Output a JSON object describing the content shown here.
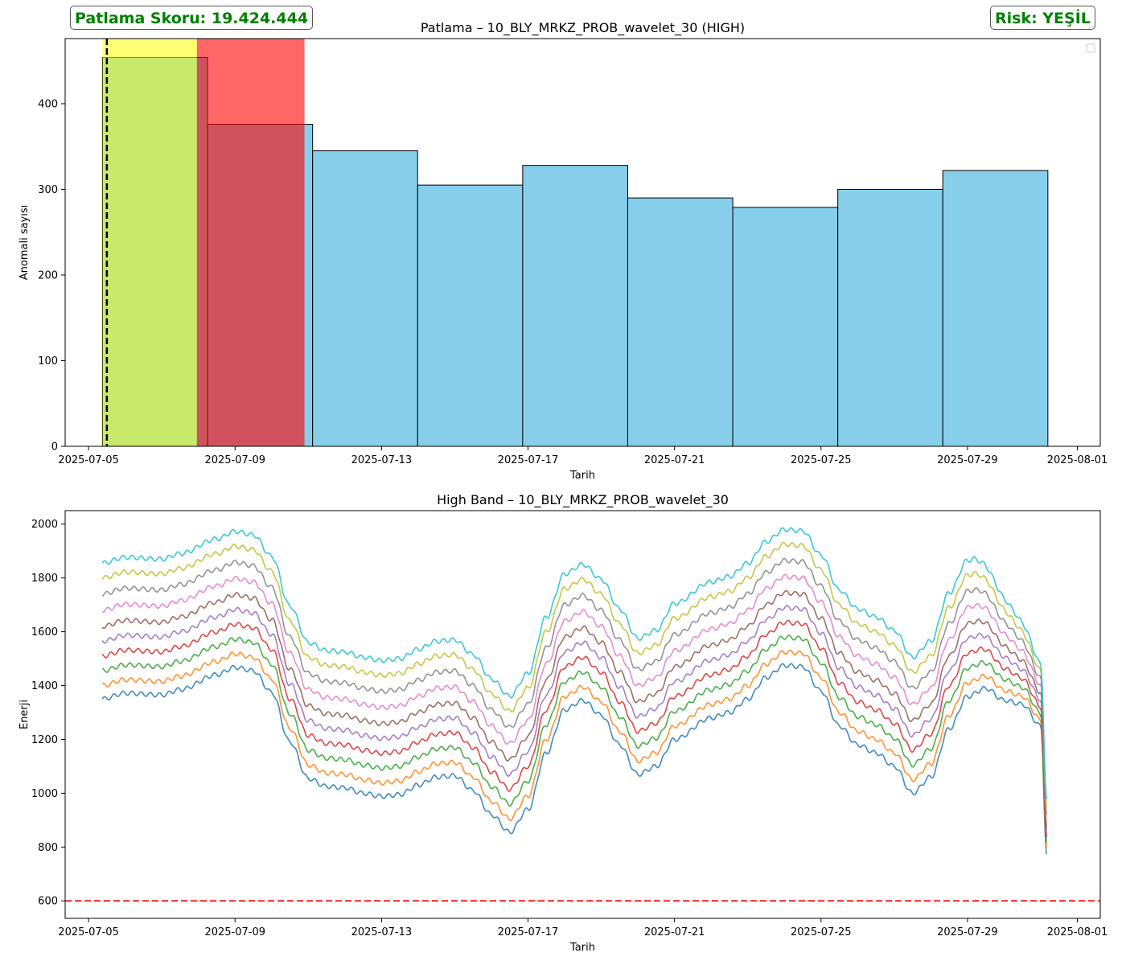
{
  "badges": {
    "score": "Patlama Skoru: 19.424.444",
    "risk": "Risk: YEŞİL",
    "color": "#008000"
  },
  "chart_data": [
    {
      "type": "bar",
      "title": "Patlama – 10_BLY_MRKZ_PROB_wavelet_30 (HIGH)",
      "xlabel": "Tarih",
      "ylabel": "Anomali sayısı",
      "xlim": [
        "2025-07-04 08:40",
        "2025-08-01 15:00"
      ],
      "ylim": [
        0,
        476
      ],
      "xticks": [
        "2025-07-05",
        "2025-07-09",
        "2025-07-13",
        "2025-07-17",
        "2025-07-21",
        "2025-07-25",
        "2025-07-29",
        "2025-08-01"
      ],
      "yticks": [
        0,
        100,
        200,
        300,
        400
      ],
      "bar_color": "#87CEEB",
      "bars": [
        {
          "start": "2025-07-05 09:10",
          "end": "2025-07-08 06:00",
          "value": 454
        },
        {
          "start": "2025-07-08 06:00",
          "end": "2025-07-11 02:50",
          "value": 376
        },
        {
          "start": "2025-07-11 02:50",
          "end": "2025-07-13 23:40",
          "value": 345
        },
        {
          "start": "2025-07-13 23:40",
          "end": "2025-07-16 20:30",
          "value": 305
        },
        {
          "start": "2025-07-16 20:30",
          "end": "2025-07-19 17:20",
          "value": 328
        },
        {
          "start": "2025-07-19 17:20",
          "end": "2025-07-22 14:10",
          "value": 290
        },
        {
          "start": "2025-07-22 14:10",
          "end": "2025-07-25 11:00",
          "value": 279
        },
        {
          "start": "2025-07-25 11:00",
          "end": "2025-07-28 07:50",
          "value": 300
        },
        {
          "start": "2025-07-28 07:50",
          "end": "2025-07-31 04:40",
          "value": 322
        }
      ],
      "highlight_spans": [
        {
          "start": "2025-07-05 09:10",
          "end": "2025-07-07 23:00",
          "color": "#FFFF00",
          "alpha": 0.55
        },
        {
          "start": "2025-07-07 23:00",
          "end": "2025-07-10 21:30",
          "color": "#FF0000",
          "alpha": 0.6
        }
      ],
      "marker_line": {
        "date": "2025-07-05 12:00",
        "color": "#000000",
        "style": "dashed"
      },
      "legend": "upper right (empty)"
    },
    {
      "type": "line",
      "title": "High Band – 10_BLY_MRKZ_PROB_wavelet_30",
      "xlabel": "Tarih",
      "ylabel": "Enerji",
      "xlim": [
        "2025-07-04 08:40",
        "2025-08-01 15:00"
      ],
      "ylim": [
        535,
        2050
      ],
      "xticks": [
        "2025-07-05",
        "2025-07-09",
        "2025-07-13",
        "2025-07-17",
        "2025-07-21",
        "2025-07-25",
        "2025-07-29",
        "2025-08-01"
      ],
      "yticks": [
        600,
        800,
        1000,
        1200,
        1400,
        1600,
        1800,
        2000
      ],
      "threshold": {
        "value": 600,
        "color": "#FF0000",
        "style": "dashed"
      },
      "base_curve": {
        "x": [
          "2025-07-05 09:00",
          "2025-07-06 00:00",
          "2025-07-07 00:00",
          "2025-07-07 12:00",
          "2025-07-08 12:00",
          "2025-07-09 00:00",
          "2025-07-09 12:00",
          "2025-07-10 00:00",
          "2025-07-10 12:00",
          "2025-07-11 00:00",
          "2025-07-11 12:00",
          "2025-07-12 00:00",
          "2025-07-12 12:00",
          "2025-07-13 00:00",
          "2025-07-13 12:00",
          "2025-07-14 00:00",
          "2025-07-14 12:00",
          "2025-07-15 00:00",
          "2025-07-15 12:00",
          "2025-07-16 00:00",
          "2025-07-16 12:00",
          "2025-07-17 00:00",
          "2025-07-17 12:00",
          "2025-07-18 00:00",
          "2025-07-18 12:00",
          "2025-07-19 00:00",
          "2025-07-19 12:00",
          "2025-07-20 00:00",
          "2025-07-20 12:00",
          "2025-07-21 00:00",
          "2025-07-22 00:00",
          "2025-07-22 12:00",
          "2025-07-23 00:00",
          "2025-07-23 12:00",
          "2025-07-24 00:00",
          "2025-07-24 12:00",
          "2025-07-25 00:00",
          "2025-07-25 12:00",
          "2025-07-26 00:00",
          "2025-07-26 12:00",
          "2025-07-27 00:00",
          "2025-07-27 12:00",
          "2025-07-28 00:00",
          "2025-07-28 12:00",
          "2025-07-29 00:00",
          "2025-07-29 12:00",
          "2025-07-30 00:00",
          "2025-07-30 12:00",
          "2025-07-31 00:00",
          "2025-07-31 04:00"
        ],
        "y": [
          1350,
          1372,
          1365,
          1385,
          1440,
          1468,
          1455,
          1375,
          1190,
          1055,
          1025,
          1020,
          1000,
          988,
          995,
          1030,
          1060,
          1065,
          1010,
          920,
          855,
          940,
          1150,
          1310,
          1345,
          1290,
          1180,
          1070,
          1100,
          1200,
          1280,
          1300,
          1350,
          1430,
          1475,
          1470,
          1380,
          1250,
          1180,
          1150,
          1100,
          1000,
          1060,
          1240,
          1360,
          1390,
          1345,
          1330,
          1250,
          760
        ],
        "ripple_amplitude": 8,
        "ripple_period_hours": 6
      },
      "series": [
        {
          "offset": 0,
          "color": "#1F77B4"
        },
        {
          "offset": 50,
          "color": "#FF7F0E"
        },
        {
          "offset": 105,
          "color": "#2CA02C"
        },
        {
          "offset": 160,
          "color": "#D62728"
        },
        {
          "offset": 215,
          "color": "#9467BD"
        },
        {
          "offset": 270,
          "color": "#8C564B"
        },
        {
          "offset": 330,
          "color": "#E377C2"
        },
        {
          "offset": 390,
          "color": "#7F7F7F"
        },
        {
          "offset": 450,
          "color": "#BCBD22"
        },
        {
          "offset": 505,
          "color": "#17BECF"
        }
      ]
    }
  ]
}
